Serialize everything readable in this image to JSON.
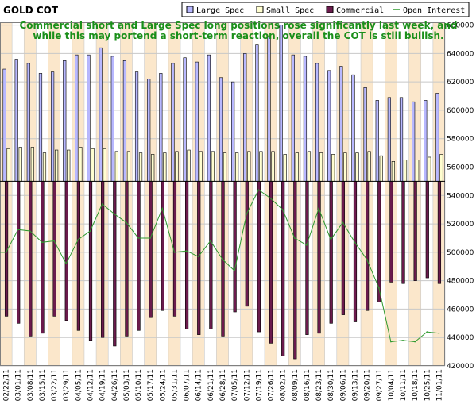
{
  "chart_data": {
    "type": "bar",
    "title": "GOLD COT",
    "annotation": [
      "Commercial short and Large Spec long positions rose significantly last week, and",
      "while this may portend a short-term reaction, overall the COT is still bullish."
    ],
    "legend": [
      "Large Spec",
      "Small Spec",
      "Commercial",
      "Open Interest"
    ],
    "legend_placement": "top-right",
    "colors": {
      "large_spec": "#b8b8ff",
      "small_spec": "#fffed0",
      "commercial": "#6b1b4d",
      "open_interest": "#2f9a2f",
      "column_shade": "#fbe7cb",
      "grid": "#c8c8c8"
    },
    "categories": [
      "02/22/11",
      "03/01/11",
      "03/08/11",
      "03/15/11",
      "03/22/11",
      "03/29/11",
      "04/05/11",
      "04/12/11",
      "04/19/11",
      "04/26/11",
      "05/03/11",
      "05/10/11",
      "05/17/11",
      "05/24/11",
      "05/31/11",
      "06/07/11",
      "06/14/11",
      "06/21/11",
      "06/28/11",
      "07/05/11",
      "07/12/11",
      "07/19/11",
      "07/26/11",
      "08/02/11",
      "08/09/11",
      "08/16/11",
      "08/23/11",
      "08/30/11",
      "09/06/11",
      "09/13/11",
      "09/20/11",
      "09/27/11",
      "10/04/11",
      "10/11/11",
      "10/18/11",
      "10/25/11",
      "11/01/11"
    ],
    "x_tick_labels": [
      "02/22/11",
      "03/01/11",
      "03/08/11",
      "03/15/11",
      "03/22/11",
      "03/29/11",
      "04/05/11",
      "04/12/11",
      "04/19/11",
      "04/26/11",
      "05/03/11",
      "05/10/11",
      "05/17/11",
      "05/24/11",
      "05/31/11",
      "06/07/11",
      "06/14/11",
      "06/21/11",
      "06/28/11",
      "07/05/11",
      "07/12/11",
      "07/19/11",
      "07/26/11",
      "08/02/11",
      "08/09/11",
      "08/16/11",
      "08/23/11",
      "08/30/11",
      "09/06/11",
      "09/13/11",
      "09/20/11",
      "09/27/11",
      "10/04/11",
      "10/11/11",
      "10/18/11",
      "10/25/11",
      "11/01/11"
    ],
    "y_tick_labels": [
      "420000",
      "440000",
      "460000",
      "480000",
      "500000",
      "520000",
      "540000",
      "560000",
      "580000",
      "600000",
      "620000",
      "640000",
      "660000"
    ],
    "y_axis_side": "right",
    "ylim": [
      420000,
      662000
    ],
    "zero_line": 550000,
    "series": [
      {
        "name": "Large Spec",
        "type": "bar",
        "values": [
          629000,
          636000,
          633000,
          626000,
          627000,
          635000,
          639000,
          639000,
          644000,
          638000,
          635000,
          627000,
          622000,
          626000,
          633000,
          637000,
          634000,
          639000,
          623000,
          620000,
          640000,
          646000,
          652000,
          660000,
          639000,
          638000,
          633000,
          628000,
          631000,
          625000,
          616000,
          607000,
          609000,
          609000,
          606000,
          607000,
          612000
        ]
      },
      {
        "name": "Small Spec",
        "type": "bar",
        "values": [
          573000,
          574000,
          574000,
          570000,
          572000,
          572000,
          574000,
          573000,
          573000,
          571000,
          571000,
          570000,
          569000,
          570000,
          571000,
          572000,
          571000,
          571000,
          570000,
          570000,
          571000,
          571000,
          571000,
          569000,
          570000,
          571000,
          570000,
          569000,
          570000,
          570000,
          571000,
          568000,
          564000,
          565000,
          565000,
          567000,
          569000
        ]
      },
      {
        "name": "Commercial",
        "type": "bar",
        "values": [
          455000,
          450000,
          441000,
          443000,
          455000,
          452000,
          445000,
          438000,
          440000,
          434000,
          441000,
          445000,
          454000,
          459000,
          455000,
          446000,
          442000,
          446000,
          441000,
          458000,
          462000,
          444000,
          436000,
          427000,
          425000,
          442000,
          443000,
          450000,
          456000,
          451000,
          459000,
          465000,
          479000,
          478000,
          480000,
          482000,
          478000
        ]
      },
      {
        "name": "Open Interest",
        "type": "line",
        "values": [
          500000,
          516000,
          515000,
          507000,
          508000,
          492000,
          509000,
          515000,
          534000,
          527000,
          521000,
          510000,
          510000,
          531000,
          500000,
          501000,
          497000,
          508000,
          495000,
          487000,
          527000,
          544000,
          538000,
          530000,
          510000,
          505000,
          531000,
          509000,
          521000,
          507000,
          495000,
          475000,
          437000,
          438000,
          437000,
          444000,
          443000
        ]
      }
    ]
  }
}
